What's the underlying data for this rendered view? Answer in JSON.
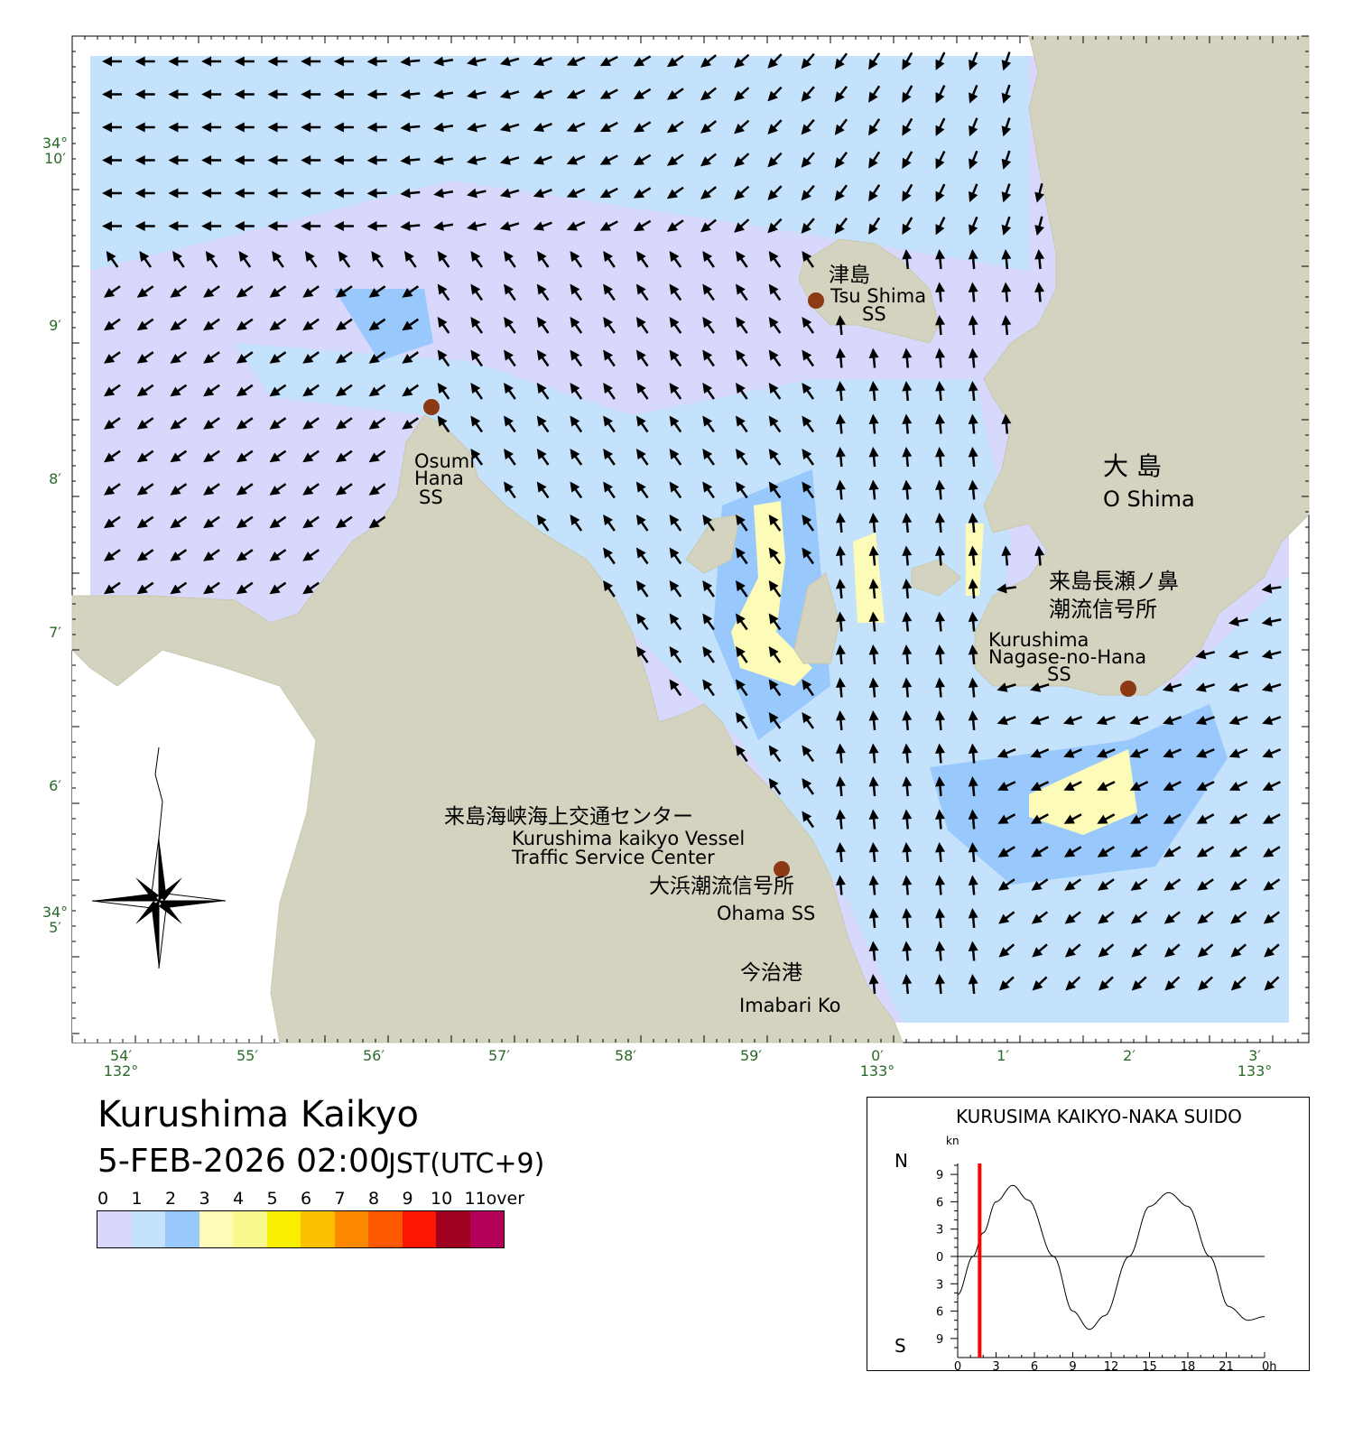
{
  "map": {
    "title": "Kurushima Kaikyo",
    "datetime": "5-FEB-2026 02:00",
    "timezone": "JST(UTC+9)",
    "land_color": "#d4d3c0",
    "labels": {
      "tsushima_jp": "津島",
      "tsushima_en": "Tsu Shima",
      "tsushima_ss": "SS",
      "osumi_1": "Osumi",
      "osumi_2": "Hana",
      "osumi_3": "SS",
      "oshima_jp": "大 島",
      "oshima_en": "O Shima",
      "nagase_jp1": "来島長瀬ノ鼻",
      "nagase_jp2": "潮流信号所",
      "nagase_en1": "Kurushima",
      "nagase_en2": "Nagase-no-Hana",
      "nagase_en3": "SS",
      "vts_jp": "来島海峡海上交通センター",
      "vts_en1": "Kurushima kaikyo Vessel",
      "vts_en2": "Traffic Service Center",
      "ohama_jp": "大浜潮流信号所",
      "ohama_en": "Ohama SS",
      "imabari_jp": "今治港",
      "imabari_en": "Imabari Ko"
    },
    "lat_ticks": [
      {
        "deg": "34°",
        "min": "10′"
      },
      {
        "min": "9′"
      },
      {
        "min": "8′"
      },
      {
        "min": "7′"
      },
      {
        "min": "6′"
      },
      {
        "deg": "34°",
        "min": "5′"
      }
    ],
    "lon_ticks": [
      {
        "min": "54′",
        "deg": "132°"
      },
      {
        "min": "55′"
      },
      {
        "min": "56′"
      },
      {
        "min": "57′"
      },
      {
        "min": "58′"
      },
      {
        "min": "59′"
      },
      {
        "min": "0′",
        "deg": "133°"
      },
      {
        "min": "1′"
      },
      {
        "min": "2′"
      },
      {
        "min": "3′",
        "deg": "133°"
      }
    ],
    "icons": [
      "current-arrow-icon",
      "station-dot-icon",
      "compass-rose-icon"
    ]
  },
  "legend": {
    "labels": [
      "0",
      "1",
      "2",
      "3",
      "4",
      "5",
      "6",
      "7",
      "8",
      "9",
      "10",
      "11over [kn]"
    ],
    "colors": [
      "#d8d8fc",
      "#c4e2fc",
      "#98c8fc",
      "#fcfcb8",
      "#f8f88c",
      "#f8f000",
      "#fcc000",
      "#fc8800",
      "#fc5800",
      "#fc1800",
      "#a00020",
      "#b40058"
    ]
  },
  "chart_data": {
    "type": "line",
    "title": "KURUSIMA KAIKYO-NAKA SUIDO",
    "ylabel": "kn",
    "y_top_label": "N",
    "y_bottom_label": "S",
    "ylim": [
      -10,
      10
    ],
    "xlim": [
      0,
      24
    ],
    "x_ticks": [
      "0",
      "3",
      "6",
      "9",
      "12",
      "15",
      "18",
      "21",
      "0h"
    ],
    "y_ticks": [
      "9",
      "6",
      "3",
      "0",
      "3",
      "6",
      "9"
    ],
    "x": [
      0,
      1.2,
      2,
      3,
      4.3,
      5.5,
      7.5,
      9,
      10.3,
      11.5,
      13.4,
      15,
      16.5,
      18,
      19.7,
      21.2,
      22.7,
      24
    ],
    "y": [
      -4.2,
      0,
      2.6,
      6,
      7.8,
      6.2,
      0,
      -6,
      -8,
      -6.5,
      0,
      5.5,
      7,
      5.5,
      0,
      -5.5,
      -7,
      -6.6
    ],
    "current_time_h": 2,
    "current_time_color": "#ff0000"
  }
}
